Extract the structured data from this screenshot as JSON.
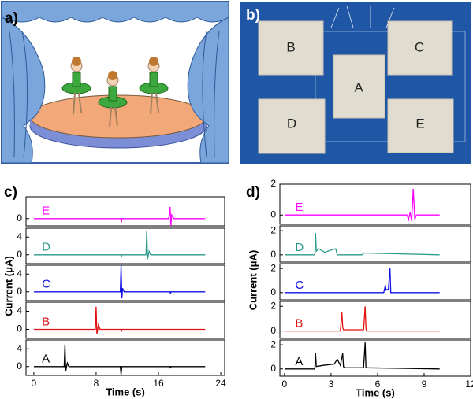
{
  "panels": {
    "a": {
      "label": "a)"
    },
    "b": {
      "label": "b)",
      "pads": [
        "B",
        "C",
        "A",
        "D",
        "E"
      ]
    }
  },
  "chart_data": [
    {
      "type": "stacked-line",
      "panel_label": "c)",
      "xlabel": "Time (s)",
      "ylabel": "Current (μA)",
      "xlim": [
        -1,
        24.5
      ],
      "xticks": [
        0,
        8,
        16,
        24
      ],
      "subplots": [
        {
          "label": "E",
          "color": "#ff00ff",
          "ylim": [
            -2,
            6
          ],
          "yticks": [
            0
          ],
          "x": [
            0,
            11.2,
            11.25,
            11.3,
            17.3,
            17.4,
            17.5,
            17.6,
            17.7,
            18,
            22
          ],
          "values": [
            0,
            0,
            -1,
            0,
            0,
            1,
            3.2,
            -2,
            1,
            0,
            0
          ]
        },
        {
          "label": "D",
          "color": "#2a9a8a",
          "ylim": [
            -2,
            6
          ],
          "yticks": [
            0,
            4
          ],
          "x": [
            0,
            11.2,
            11.25,
            11.3,
            14.4,
            14.5,
            14.6,
            14.8,
            15,
            22
          ],
          "values": [
            0,
            0,
            -0.4,
            0,
            0,
            5.5,
            -1,
            0.8,
            0,
            0
          ]
        },
        {
          "label": "C",
          "color": "#1010e0",
          "ylim": [
            -2,
            6
          ],
          "yticks": [
            0,
            4
          ],
          "x": [
            0,
            11.1,
            11.2,
            11.3,
            11.4,
            11.6,
            17.5,
            17.55,
            17.6,
            22
          ],
          "values": [
            0,
            0,
            6,
            -1.5,
            0.8,
            0,
            0,
            -0.4,
            0,
            0
          ]
        },
        {
          "label": "B",
          "color": "#e01010",
          "ylim": [
            -2,
            6
          ],
          "yticks": [
            0,
            4
          ],
          "x": [
            0,
            7.9,
            8,
            8.1,
            8.3,
            8.5,
            11.2,
            11.25,
            11.3,
            22
          ],
          "values": [
            0,
            0,
            5,
            -1,
            1,
            0,
            0,
            -0.5,
            0,
            0
          ]
        },
        {
          "label": "A",
          "color": "#000000",
          "ylim": [
            -2,
            6
          ],
          "yticks": [
            0,
            4
          ],
          "x": [
            0,
            3.9,
            4,
            4.1,
            4.3,
            4.5,
            11.1,
            11.2,
            11.3,
            17.5,
            17.55,
            17.6,
            22
          ],
          "values": [
            0,
            0,
            5,
            -1,
            0.8,
            0,
            0,
            -1.8,
            0,
            0,
            -0.4,
            0,
            0
          ]
        }
      ]
    },
    {
      "type": "stacked-line",
      "panel_label": "d)",
      "xlabel": "Time (s)",
      "ylabel": "Current (μA)",
      "xlim": [
        -0.3,
        12
      ],
      "xticks": [
        0,
        3,
        6,
        9,
        12
      ],
      "subplots": [
        {
          "label": "E",
          "color": "#ff00ff",
          "ylim": [
            -0.6,
            2
          ],
          "yticks": [
            0,
            2
          ],
          "x": [
            0,
            7.9,
            8.0,
            8.1,
            8.2,
            8.3,
            8.4,
            8.5,
            10
          ],
          "values": [
            0,
            0,
            -0.3,
            0.2,
            -0.4,
            1.7,
            -0.3,
            0,
            0
          ]
        },
        {
          "label": "D",
          "color": "#2a9a8a",
          "ylim": [
            -0.6,
            2.4
          ],
          "yticks": [
            0,
            2
          ],
          "x": [
            0,
            1.95,
            2,
            2.05,
            2.2,
            2.6,
            3.0,
            3.3,
            3.4,
            5,
            5.1,
            10
          ],
          "values": [
            0,
            0,
            1.8,
            0.3,
            0.5,
            0.2,
            0.4,
            0.5,
            0,
            0,
            0.15,
            0
          ]
        },
        {
          "label": "C",
          "color": "#1010e0",
          "ylim": [
            -0.6,
            2.4
          ],
          "yticks": [
            0,
            2
          ],
          "x": [
            0,
            6.4,
            6.5,
            6.55,
            6.7,
            6.8,
            6.85,
            7,
            10
          ],
          "values": [
            0,
            0,
            0.6,
            0.2,
            0.3,
            2,
            0,
            0,
            0
          ]
        },
        {
          "label": "B",
          "color": "#e01010",
          "ylim": [
            -0.6,
            2.4
          ],
          "yticks": [
            0,
            2
          ],
          "x": [
            0,
            3.6,
            3.7,
            3.75,
            3.8,
            5.1,
            5.2,
            5.25,
            5.3,
            10
          ],
          "values": [
            0,
            0,
            1.5,
            0.3,
            0.1,
            0.1,
            2,
            0.2,
            0,
            0
          ]
        },
        {
          "label": "A",
          "color": "#000000",
          "ylim": [
            -0.6,
            2.4
          ],
          "yticks": [
            0,
            2
          ],
          "x": [
            0,
            1.95,
            2,
            2.05,
            2.5,
            3.2,
            3.4,
            3.6,
            3.75,
            3.8,
            3.85,
            5.1,
            5.2,
            5.25,
            10
          ],
          "values": [
            0,
            0,
            1.3,
            0.2,
            0.3,
            0.4,
            0.8,
            0.3,
            1.3,
            0.2,
            0.1,
            0.1,
            2.2,
            0.1,
            0
          ]
        }
      ]
    }
  ]
}
